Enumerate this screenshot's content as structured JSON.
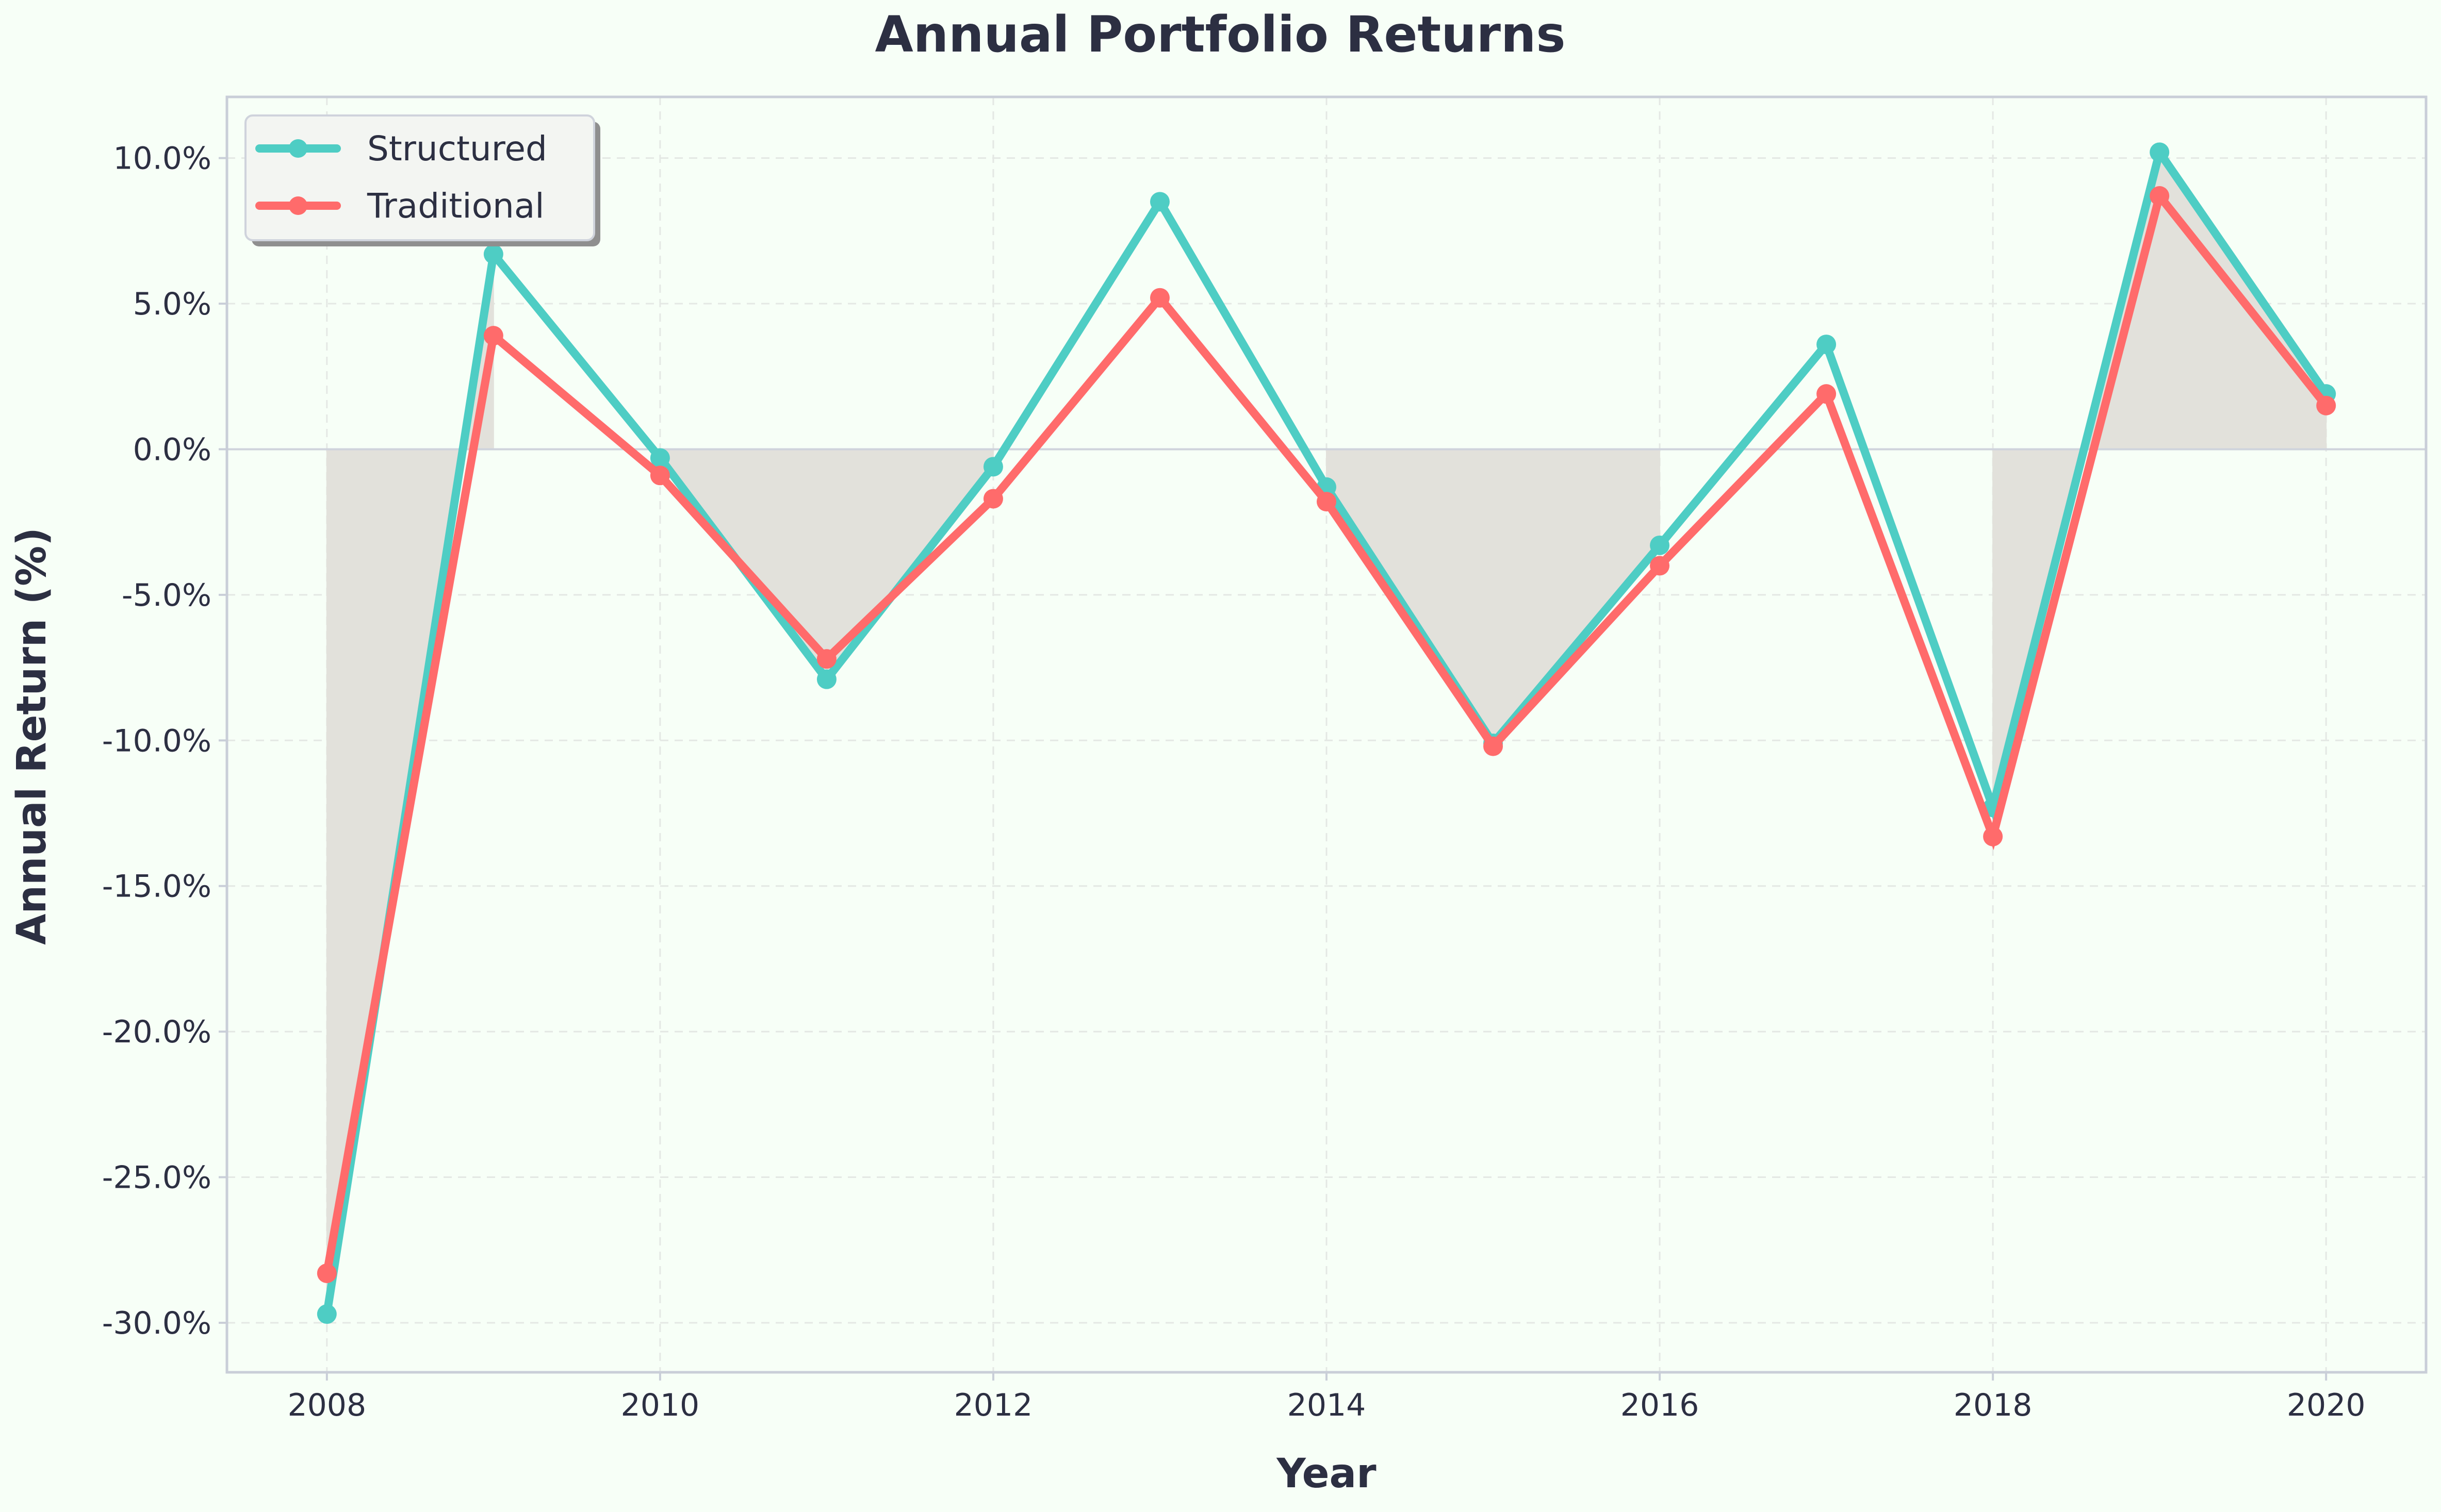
{
  "chart_data": {
    "type": "line",
    "title": "Annual Portfolio Returns",
    "xlabel": "Year",
    "ylabel": "Annual Return (%)",
    "x": [
      2008,
      2009,
      2010,
      2011,
      2012,
      2013,
      2014,
      2015,
      2016,
      2017,
      2018,
      2019,
      2020
    ],
    "xticks": [
      2008,
      2010,
      2012,
      2014,
      2016,
      2018,
      2020
    ],
    "yticks": [
      -30,
      -25,
      -20,
      -15,
      -10,
      -5,
      0,
      5,
      10
    ],
    "ytick_labels": [
      "-30.0%",
      "-25.0%",
      "-20.0%",
      "-15.0%",
      "-10.0%",
      "-5.0%",
      "0.0%",
      "5.0%",
      "10.0%"
    ],
    "xlim": [
      2007.4,
      2020.6
    ],
    "ylim": [
      -31.7,
      12.1
    ],
    "grid": true,
    "legend_position": "top-left",
    "series": [
      {
        "name": "Structured",
        "color": "#4ecdc4",
        "values": [
          -29.7,
          6.7,
          -0.3,
          -7.9,
          -0.6,
          8.5,
          -1.3,
          -10.1,
          -3.3,
          3.6,
          -12.3,
          10.2,
          1.9
        ]
      },
      {
        "name": "Traditional",
        "color": "#ff6b6b",
        "values": [
          -28.3,
          3.9,
          -0.9,
          -7.2,
          -1.7,
          5.2,
          -1.8,
          -10.2,
          -4.0,
          1.9,
          -13.3,
          8.7,
          1.5
        ]
      }
    ],
    "shaded_regions": [
      {
        "from": 2008,
        "to": 2009
      },
      {
        "from": 2010,
        "to": 2012
      },
      {
        "from": 2014,
        "to": 2016
      },
      {
        "from": 2018,
        "to": 2019
      },
      {
        "from": 2019,
        "to": 2020
      }
    ],
    "shade_color": "#e2e1db"
  }
}
